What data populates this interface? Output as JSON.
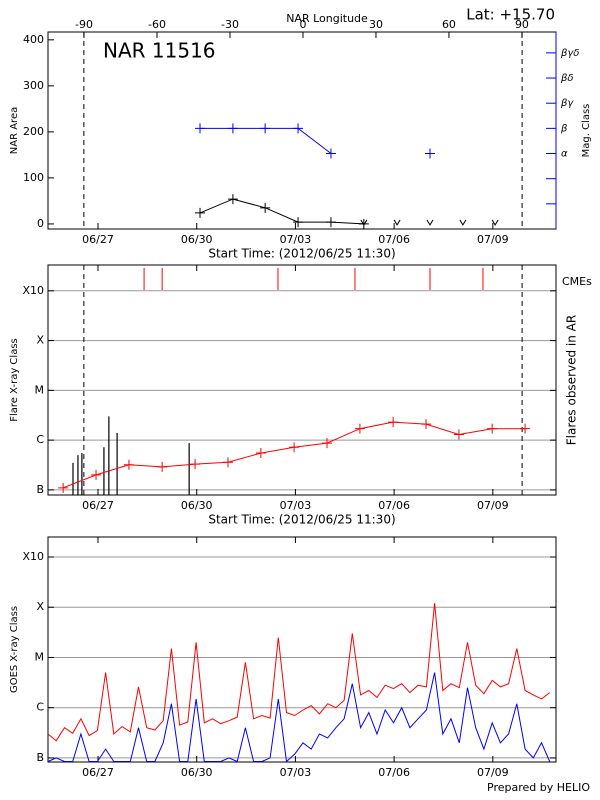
{
  "lat_label": "Lat: +15.70",
  "footer": "Prepared by HELIO",
  "chart_data": [
    {
      "type": "line",
      "title": "NAR 11516",
      "xlabel": "Start Time: (2012/06/25 11:30)",
      "x2label": "NAR Longitude",
      "ylabel": "NAR Area",
      "y2label": "Mag. Class",
      "y2color": "#0000ff",
      "xlim": [
        0,
        15.44
      ],
      "xticks": [
        {
          "value": 1.52,
          "label": "06/27"
        },
        {
          "value": 4.52,
          "label": "06/30"
        },
        {
          "value": 7.52,
          "label": "07/03"
        },
        {
          "value": 10.52,
          "label": "07/06"
        },
        {
          "value": 13.52,
          "label": "07/09"
        }
      ],
      "x2lim": [
        -104.8,
        104.0
      ],
      "x2ticks": [
        -90,
        -60,
        -30,
        0,
        30,
        60,
        90
      ],
      "ylim": [
        -11,
        417
      ],
      "yticks": [
        0,
        100,
        200,
        300,
        400
      ],
      "y2lim": [
        0,
        7.83
      ],
      "y2ticks": [
        {
          "value": 3,
          "label": "α"
        },
        {
          "value": 4,
          "label": "β"
        },
        {
          "value": 5,
          "label": "βγ"
        },
        {
          "value": 6,
          "label": "βδ"
        },
        {
          "value": 7,
          "label": "βγδ"
        }
      ],
      "y2minor": [
        1,
        2
      ],
      "limbs": [
        1.09,
        14.41
      ],
      "series": [
        {
          "color": "#000000",
          "style": "line",
          "marker": "+",
          "x": [
            4.62,
            5.62,
            6.6,
            7.6,
            8.6,
            9.6
          ],
          "values": [
            24,
            54,
            35,
            4,
            4,
            0
          ]
        },
        {
          "color": "#000000",
          "style": "points",
          "marker": "v",
          "x": [
            9.6,
            10.61,
            11.61,
            12.61,
            13.59
          ],
          "values": [
            0,
            0,
            0,
            0,
            0
          ]
        },
        {
          "color": "#0000ff",
          "style": "line",
          "marker": "+",
          "axis": "y2",
          "x": [
            4.62,
            5.62,
            6.6,
            7.6,
            8.6
          ],
          "values": [
            4,
            4,
            4,
            4,
            3
          ]
        },
        {
          "color": "#0000ff",
          "style": "points",
          "marker": "+",
          "axis": "y2",
          "x": [
            11.61
          ],
          "values": [
            3
          ]
        }
      ]
    },
    {
      "type": "line",
      "log_y": true,
      "grid": true,
      "xlabel": "Start Time: (2012/06/25 11:30)",
      "ylabel": "Flare X-ray Class",
      "y2label": "Flares observed in AR",
      "cme_label": "CMEs",
      "cme_color": "#ff0000",
      "cmes": [
        2.92,
        3.47,
        6.99,
        9.33,
        11.61,
        13.22
      ],
      "xlim": [
        0,
        15.44
      ],
      "xticks": [
        {
          "value": 1.52,
          "label": "06/27"
        },
        {
          "value": 4.52,
          "label": "06/30"
        },
        {
          "value": 7.52,
          "label": "07/03"
        },
        {
          "value": 10.52,
          "label": "07/06"
        },
        {
          "value": 13.52,
          "label": "07/09"
        }
      ],
      "ylim": [
        7.9e-08,
        0.0033
      ],
      "yticks": [
        {
          "value": 1e-07,
          "label": "B"
        },
        {
          "value": 1e-06,
          "label": "C"
        },
        {
          "value": 1e-05,
          "label": "M"
        },
        {
          "value": 0.0001,
          "label": "X"
        },
        {
          "value": 0.001,
          "label": "X10"
        }
      ],
      "limbs": [
        1.09,
        14.41
      ],
      "series": [
        {
          "color": "#000000",
          "style": "bars",
          "x": [
            0.76,
            0.91,
            1.03,
            1.7,
            1.85,
            2.1,
            4.29
          ],
          "values": [
            3.5e-07,
            5e-07,
            5.5e-07,
            7.2e-07,
            3e-06,
            1.4e-06,
            8.7e-07
          ]
        },
        {
          "color": "#ff0000",
          "style": "line",
          "marker": "+",
          "x": [
            0.46,
            1.46,
            2.46,
            3.47,
            4.47,
            5.47,
            6.47,
            7.48,
            8.48,
            9.48,
            10.49,
            11.49,
            12.49,
            13.5,
            14.5
          ],
          "values": [
            1.1e-07,
            2e-07,
            3.2e-07,
            2.9e-07,
            3.3e-07,
            3.6e-07,
            5.5e-07,
            7.2e-07,
            8.7e-07,
            1.7e-06,
            2.3e-06,
            2.1e-06,
            1.3e-06,
            1.7e-06,
            1.7e-06
          ]
        }
      ]
    },
    {
      "type": "line",
      "log_y": true,
      "grid": true,
      "ylabel": "GOES X-ray Class",
      "xlim": [
        0,
        15.44
      ],
      "xticks": [
        {
          "value": 1.52,
          "label": "06/27"
        },
        {
          "value": 4.52,
          "label": "06/30"
        },
        {
          "value": 7.52,
          "label": "07/03"
        },
        {
          "value": 10.52,
          "label": "07/06"
        },
        {
          "value": 13.52,
          "label": "07/09"
        }
      ],
      "ylim": [
        8.3e-08,
        0.0025
      ],
      "yticks": [
        {
          "value": 1e-07,
          "label": "B"
        },
        {
          "value": 1e-06,
          "label": "C"
        },
        {
          "value": 1e-05,
          "label": "M"
        },
        {
          "value": 0.0001,
          "label": "X"
        },
        {
          "value": 0.001,
          "label": "X10"
        }
      ],
      "x": [
        0,
        0.25,
        0.5,
        0.75,
        1,
        1.25,
        1.5,
        1.75,
        2,
        2.25,
        2.5,
        2.75,
        3,
        3.25,
        3.5,
        3.75,
        4,
        4.25,
        4.5,
        4.75,
        5,
        5.25,
        5.5,
        5.75,
        6,
        6.25,
        6.5,
        6.75,
        7,
        7.25,
        7.5,
        7.75,
        8,
        8.25,
        8.5,
        8.75,
        9,
        9.25,
        9.5,
        9.75,
        10,
        10.25,
        10.5,
        10.75,
        11,
        11.25,
        11.5,
        11.75,
        12,
        12.25,
        12.5,
        12.75,
        13,
        13.25,
        13.5,
        13.75,
        14,
        14.25,
        14.5,
        14.75,
        15,
        15.25
      ],
      "series": [
        {
          "color": "#0000ff",
          "style": "line",
          "values": [
            8.5e-08,
            1e-07,
            8.5e-08,
            8.5e-08,
            3e-07,
            8.5e-08,
            8.5e-08,
            1.5e-07,
            8.5e-08,
            8.5e-08,
            8.5e-08,
            4e-07,
            8.5e-08,
            8.5e-08,
            2e-07,
            1.2e-06,
            8.5e-08,
            8.5e-08,
            1.5e-06,
            8.5e-08,
            8.5e-08,
            8.5e-08,
            1e-07,
            8.5e-08,
            4e-07,
            8.5e-08,
            8.5e-08,
            1e-07,
            1.5e-06,
            8.5e-08,
            1.2e-07,
            2e-07,
            1.5e-07,
            3e-07,
            2.5e-07,
            4e-07,
            6e-07,
            3e-06,
            4e-07,
            8e-07,
            3e-07,
            9e-07,
            5e-07,
            1e-06,
            4e-07,
            6e-07,
            9e-07,
            5e-06,
            3e-07,
            6e-07,
            2e-07,
            2.5e-06,
            4e-07,
            1.5e-07,
            5e-07,
            2e-07,
            3e-07,
            1.2e-06,
            1.5e-07,
            1e-07,
            2e-07,
            8.5e-08
          ]
        },
        {
          "color": "#ff0000",
          "style": "line",
          "values": [
            3e-07,
            2.2e-07,
            4e-07,
            3.1e-07,
            6e-07,
            2.8e-07,
            3.5e-07,
            5e-06,
            3e-07,
            4.2e-07,
            3.3e-07,
            2.6e-06,
            4e-07,
            3.6e-07,
            5.5e-07,
            1.5e-05,
            4.5e-07,
            5.2e-07,
            2e-05,
            5e-07,
            6e-07,
            4.8e-07,
            5.5e-07,
            6.5e-07,
            8e-06,
            6e-07,
            7e-07,
            6.2e-07,
            2.5e-05,
            8e-07,
            7e-07,
            9e-07,
            1.1e-06,
            7.5e-07,
            1.2e-06,
            1e-06,
            1.4e-06,
            3e-05,
            1.8e-06,
            2.2e-06,
            1.6e-06,
            2.8e-06,
            2.4e-06,
            3e-06,
            2e-06,
            2.8e-06,
            2.6e-06,
            0.00012,
            2.2e-06,
            3e-06,
            2.5e-06,
            2e-05,
            2.8e-06,
            1.9e-06,
            3.5e-06,
            2.6e-06,
            3e-06,
            1.5e-05,
            2.2e-06,
            1.8e-06,
            1.5e-06,
            2e-06
          ]
        }
      ]
    }
  ]
}
